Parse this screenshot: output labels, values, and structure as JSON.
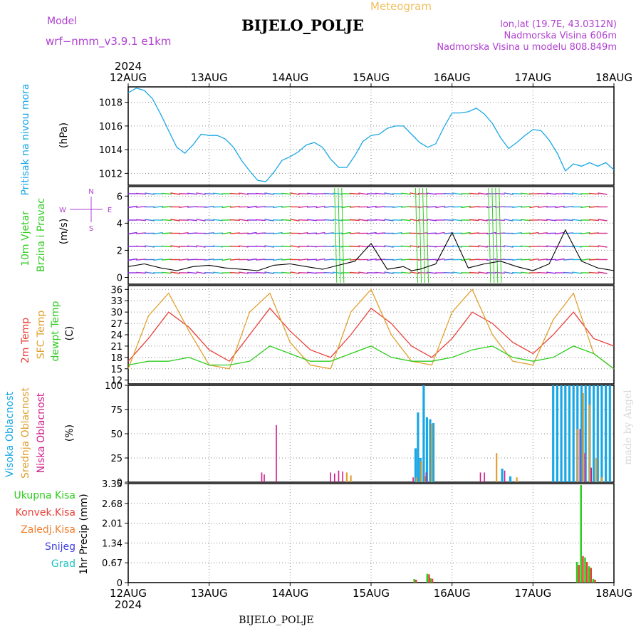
{
  "header": {
    "model_label": "Model",
    "model_name": "wrf−nmm_v3.9.1  e1km",
    "app_title": "Meteogram",
    "station": "BIJELO_POLJE",
    "lonlat": "lon,lat (19.7E, 43.0312N)",
    "elevation": "Nadmorska Visina 606m",
    "model_elevation": "Nadmorska Visina u modelu 808.849m"
  },
  "footer": {
    "station": "BIJELO_POLJE"
  },
  "credit": "made by Angel",
  "colors": {
    "pressure": "#1aa7e6",
    "wind_label": "#2ecc1e",
    "t2m": "#e8413a",
    "sfc": "#e0a030",
    "dew": "#2ecc1e",
    "cloud_high": "#1aa7e6",
    "cloud_mid": "#e0a030",
    "cloud_low": "#d01c8b",
    "total_precip": "#2ecc1e",
    "conv_precip": "#e8413a",
    "frozen_precip": "#f08030",
    "snow": "#4040e0",
    "hail": "#20c0c0",
    "header_purple": "#b040d0",
    "header_orange": "#f0c060",
    "grid": "#888888"
  },
  "chart_data": [
    {
      "id": "pressure",
      "type": "line",
      "ylabel": [
        "Pritisak na nivou mora",
        "(hPa)"
      ],
      "yticks": [
        1012,
        1014,
        1016,
        1018
      ],
      "ylim": [
        1011,
        1019.3
      ],
      "x_top_year": "2024",
      "x": [
        0,
        0.1,
        0.2,
        0.3,
        0.4,
        0.5,
        0.6,
        0.7,
        0.8,
        0.9,
        1.0,
        1.1,
        1.2,
        1.3,
        1.4,
        1.5,
        1.6,
        1.7,
        1.8,
        1.9,
        2.0,
        2.1,
        2.2,
        2.3,
        2.4,
        2.5,
        2.6,
        2.7,
        2.8,
        2.9,
        3.0,
        3.1,
        3.2,
        3.3,
        3.4,
        3.5,
        3.6,
        3.7,
        3.8,
        3.9,
        4.0,
        4.1,
        4.2,
        4.3,
        4.4,
        4.5,
        4.6,
        4.7,
        4.8,
        4.9,
        5.0,
        5.1,
        5.2,
        5.3,
        5.4,
        5.5,
        5.6,
        5.7,
        5.8,
        5.9,
        6.0
      ],
      "series": [
        {
          "values": [
            1018.8,
            1019.2,
            1019.0,
            1018.3,
            1017.0,
            1015.6,
            1014.2,
            1013.7,
            1014.4,
            1015.3,
            1015.2,
            1015.2,
            1014.9,
            1014.2,
            1013.1,
            1012.2,
            1011.4,
            1011.3,
            1012.1,
            1013.1,
            1013.4,
            1013.8,
            1014.4,
            1014.6,
            1014.2,
            1013.2,
            1012.5,
            1012.5,
            1013.5,
            1014.7,
            1015.2,
            1015.3,
            1015.8,
            1016.0,
            1016.0,
            1015.3,
            1014.6,
            1014.2,
            1014.5,
            1015.9,
            1017.1,
            1017.1,
            1017.2,
            1017.5,
            1017.0,
            1016.2,
            1015.0,
            1014.1,
            1014.6,
            1015.2,
            1015.7,
            1015.6,
            1014.8,
            1013.7,
            1012.2,
            1012.8,
            1012.6,
            1012.9,
            1012.6,
            1012.9,
            1012.3
          ]
        }
      ]
    },
    {
      "id": "wind",
      "type": "line",
      "ylabel": [
        "10m Vjetar",
        "Brzina i Pravac",
        "(m/s)"
      ],
      "direction_key": {
        "n": "N",
        "s": "S",
        "w": "W",
        "e": "E"
      },
      "yticks": [
        0,
        2,
        4,
        6
      ],
      "ylim": [
        -0.5,
        6.7
      ],
      "x": [
        0,
        0.2,
        0.4,
        0.6,
        0.8,
        1.0,
        1.2,
        1.4,
        1.6,
        1.8,
        2.0,
        2.2,
        2.4,
        2.6,
        2.8,
        3.0,
        3.2,
        3.4,
        3.5,
        3.6,
        3.8,
        4.0,
        4.2,
        4.4,
        4.6,
        4.8,
        5.0,
        5.2,
        5.4,
        5.6,
        5.8,
        6.0
      ],
      "series": [
        {
          "values": [
            0.8,
            1.0,
            0.7,
            0.5,
            0.8,
            0.9,
            0.7,
            0.6,
            0.5,
            0.9,
            1.0,
            0.8,
            0.6,
            0.9,
            1.2,
            2.5,
            0.6,
            0.8,
            0.5,
            0.6,
            1.0,
            3.3,
            0.7,
            1.0,
            1.2,
            0.8,
            0.5,
            1.0,
            3.5,
            1.2,
            0.7,
            0.5
          ]
        }
      ]
    },
    {
      "id": "temperature",
      "type": "line",
      "ylabel": [
        "2m Temp",
        "SFC Temp",
        "dewpt Temp",
        "(C)"
      ],
      "yticks": [
        12,
        15,
        18,
        21,
        24,
        27,
        30,
        33,
        36
      ],
      "ylim": [
        11,
        37
      ],
      "x": [
        0,
        0.25,
        0.5,
        0.75,
        1.0,
        1.25,
        1.5,
        1.75,
        2.0,
        2.25,
        2.5,
        2.75,
        3.0,
        3.25,
        3.5,
        3.75,
        4.0,
        4.25,
        4.5,
        4.75,
        5.0,
        5.25,
        5.5,
        5.75,
        6.0
      ],
      "series": [
        {
          "name": "2m Temp",
          "values": [
            17,
            23,
            30,
            26,
            20,
            17,
            24,
            31,
            25,
            20,
            18,
            24,
            31,
            27,
            21,
            18,
            23,
            30,
            27,
            22,
            19,
            24,
            30,
            23,
            21
          ]
        },
        {
          "name": "SFC Temp",
          "values": [
            15,
            29,
            35,
            25,
            16,
            15,
            30,
            35,
            22,
            16,
            15,
            30,
            36,
            24,
            17,
            16,
            30,
            36,
            24,
            17,
            16,
            28,
            35,
            19,
            15
          ]
        },
        {
          "name": "dewpt Temp",
          "values": [
            16,
            17,
            17,
            18,
            16,
            16,
            17,
            21,
            19,
            17,
            17,
            19,
            21,
            18,
            17,
            17,
            18,
            20,
            21,
            18,
            17,
            18,
            21,
            19,
            15
          ]
        }
      ]
    },
    {
      "id": "cloud",
      "type": "bar",
      "ylabel": [
        "Visoka Oblacnost",
        "Srednja Oblacnost",
        "Niska Oblacnost",
        "(%)"
      ],
      "yticks": [
        0,
        25,
        50,
        75,
        100
      ],
      "ylim": [
        0,
        100
      ],
      "series": [
        {
          "name": "Visoka Oblacnost",
          "points": [
            [
              3.55,
              35
            ],
            [
              3.58,
              72
            ],
            [
              3.61,
              25
            ],
            [
              3.65,
              100
            ],
            [
              3.69,
              67
            ],
            [
              3.73,
              65
            ],
            [
              3.77,
              61
            ],
            [
              4.62,
              14
            ],
            [
              4.72,
              6
            ],
            [
              5.25,
              100
            ],
            [
              5.3,
              100
            ],
            [
              5.35,
              100
            ],
            [
              5.4,
              100
            ],
            [
              5.45,
              100
            ],
            [
              5.5,
              100
            ],
            [
              5.55,
              100
            ],
            [
              5.6,
              100
            ],
            [
              5.65,
              100
            ],
            [
              5.7,
              100
            ],
            [
              5.75,
              100
            ],
            [
              5.8,
              100
            ],
            [
              5.85,
              100
            ],
            [
              5.9,
              100
            ],
            [
              5.95,
              100
            ]
          ]
        },
        {
          "name": "Srednja Oblacnost",
          "points": [
            [
              2.7,
              10
            ],
            [
              2.75,
              7
            ],
            [
              3.56,
              5
            ],
            [
              3.62,
              22
            ],
            [
              3.67,
              6
            ],
            [
              3.75,
              60
            ],
            [
              4.55,
              30
            ],
            [
              4.8,
              5
            ],
            [
              5.55,
              55
            ],
            [
              5.62,
              92
            ],
            [
              5.7,
              80
            ],
            [
              5.78,
              25
            ],
            [
              5.85,
              5
            ]
          ]
        },
        {
          "name": "Niska Oblacnost",
          "points": [
            [
              1.65,
              10
            ],
            [
              1.68,
              8
            ],
            [
              1.83,
              59
            ],
            [
              2.5,
              10
            ],
            [
              2.55,
              9
            ],
            [
              2.6,
              12
            ],
            [
              2.65,
              11
            ],
            [
              3.52,
              5
            ],
            [
              3.68,
              10
            ],
            [
              4.35,
              10
            ],
            [
              4.4,
              10
            ],
            [
              4.65,
              12
            ],
            [
              5.58,
              55
            ],
            [
              5.64,
              30
            ],
            [
              5.72,
              15
            ]
          ]
        }
      ]
    },
    {
      "id": "precip",
      "type": "bar",
      "ylabel": [
        "1hr Precip (mm)"
      ],
      "legend": [
        "Ukupna Kisa",
        "Konvek.Kisa",
        "Zaledj.Kisa",
        "Snijeg",
        "Grad"
      ],
      "yticks": [
        0,
        0.67,
        1.34,
        2.01,
        2.68,
        3.35
      ],
      "ylim": [
        0,
        3.35
      ],
      "series": [
        {
          "name": "Ukupna Kisa",
          "points": [
            [
              3.54,
              0.12
            ],
            [
              3.7,
              0.3
            ],
            [
              3.74,
              0.15
            ],
            [
              5.55,
              0.7
            ],
            [
              5.6,
              3.3
            ],
            [
              5.65,
              0.85
            ],
            [
              5.7,
              0.55
            ],
            [
              5.75,
              0.12
            ]
          ]
        },
        {
          "name": "Konvek.Kisa",
          "points": [
            [
              3.55,
              0.1
            ],
            [
              3.71,
              0.28
            ],
            [
              3.75,
              0.13
            ],
            [
              5.56,
              0.6
            ],
            [
              5.61,
              0.9
            ],
            [
              5.66,
              0.7
            ],
            [
              5.71,
              0.5
            ],
            [
              5.76,
              0.1
            ]
          ]
        }
      ]
    }
  ],
  "time_axis": {
    "ticks": [
      "12AUG",
      "13AUG",
      "14AUG",
      "15AUG",
      "16AUG",
      "17AUG",
      "18AUG"
    ],
    "year": "2024"
  }
}
